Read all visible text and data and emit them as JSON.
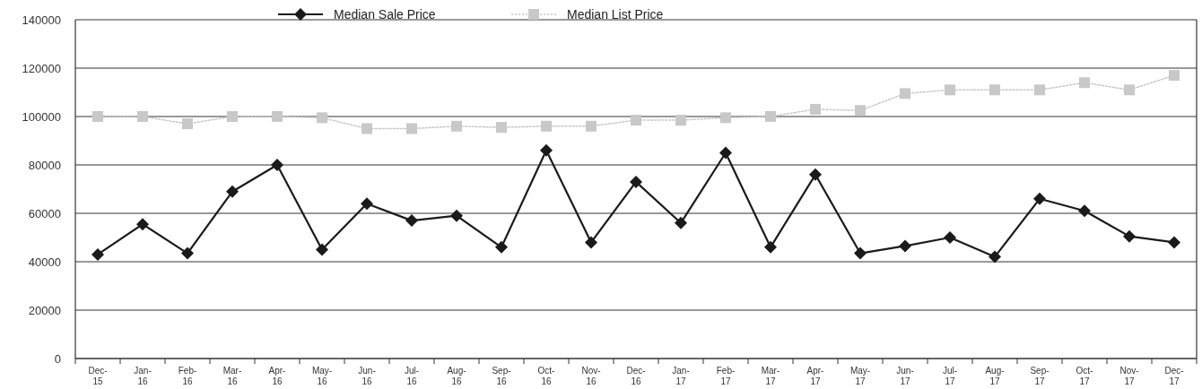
{
  "chart_data": {
    "type": "line",
    "categories": [
      "Dec-15",
      "Jan-16",
      "Feb-16",
      "Mar-16",
      "Apr-16",
      "May-16",
      "Jun-16",
      "Jul-16",
      "Aug-16",
      "Sep-16",
      "Oct-16",
      "Nov-16",
      "Dec-16",
      "Jan-17",
      "Feb-17",
      "Mar-17",
      "Apr-17",
      "May-17",
      "Jun-17",
      "Jul-17",
      "Aug-17",
      "Sep-17",
      "Oct-17",
      "Nov-17",
      "Dec-17"
    ],
    "series": [
      {
        "name": "Median Sale Price",
        "color": "#1a1a1a",
        "marker": "diamond",
        "line_style": "solid",
        "values": [
          43000,
          55500,
          43500,
          69000,
          80000,
          45000,
          64000,
          57000,
          59000,
          46000,
          86000,
          48000,
          73000,
          56000,
          85000,
          46000,
          76000,
          43500,
          46500,
          50000,
          42000,
          66000,
          61000,
          50500,
          48000
        ]
      },
      {
        "name": "Median List Price",
        "color": "#c8c8c8",
        "marker": "square",
        "line_style": "dotted",
        "values": [
          100000,
          100000,
          97000,
          100000,
          100000,
          99500,
          95000,
          95000,
          96000,
          95500,
          96000,
          96000,
          98500,
          98500,
          99500,
          100000,
          103000,
          102500,
          109500,
          111000,
          111000,
          111000,
          114000,
          111000,
          117000
        ]
      }
    ],
    "ylim": [
      0,
      140000
    ],
    "yticks": [
      0,
      20000,
      40000,
      60000,
      80000,
      100000,
      120000,
      140000
    ],
    "grid": "y",
    "legend": "top"
  }
}
